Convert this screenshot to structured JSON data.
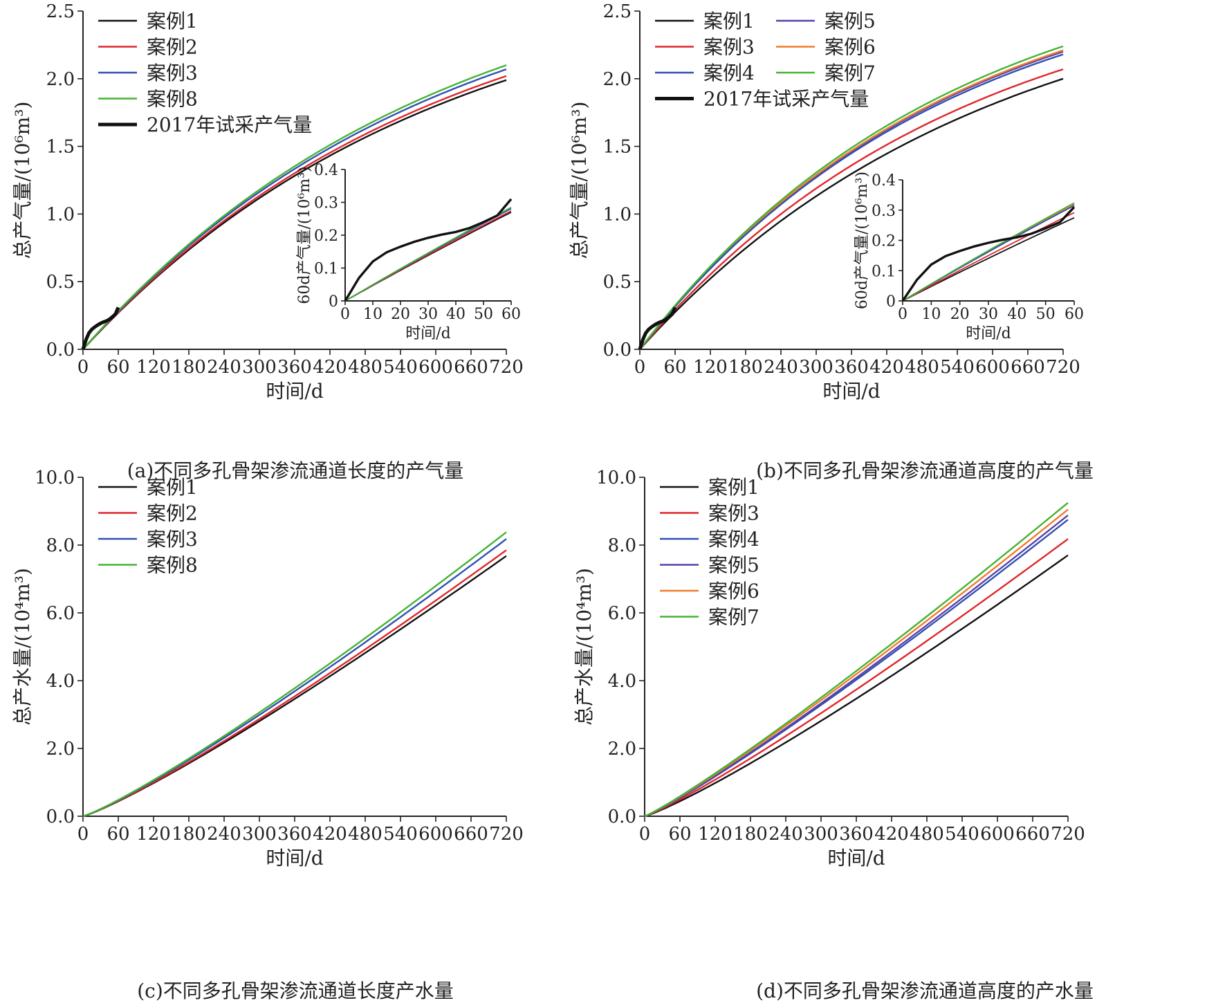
{
  "chart_data": [
    {
      "type": "line",
      "caption": "(a)不同多孔骨架渗流通道长度的产气量",
      "xlabel": "时间/d",
      "ylabel": "总产气量/(10⁶m³)",
      "xlim": [
        0,
        720
      ],
      "ylim": [
        0,
        2.5
      ],
      "xticks": [
        0,
        60,
        120,
        180,
        240,
        300,
        360,
        420,
        480,
        540,
        600,
        660,
        720
      ],
      "yticks": [
        "0.0",
        "0.5",
        "1.0",
        "1.5",
        "2.0",
        "2.5"
      ],
      "legend_position": "top-left",
      "legend_columns": 1,
      "series": [
        {
          "name": "案例1",
          "color": "#111111",
          "final": 1.99,
          "k": 0.00165
        },
        {
          "name": "案例2",
          "color": "#e0262a",
          "final": 2.02,
          "k": 0.00165
        },
        {
          "name": "案例3",
          "color": "#2f4fb3",
          "final": 2.07,
          "k": 0.00165
        },
        {
          "name": "案例8",
          "color": "#43b331",
          "final": 2.1,
          "k": 0.00165
        },
        {
          "name": "2017年试采产气量",
          "color": "#111111",
          "observed": true
        }
      ],
      "observed_points": [
        [
          0,
          0
        ],
        [
          5,
          0.07
        ],
        [
          10,
          0.12
        ],
        [
          15,
          0.148
        ],
        [
          20,
          0.165
        ],
        [
          25,
          0.18
        ],
        [
          30,
          0.192
        ],
        [
          35,
          0.202
        ],
        [
          40,
          0.21
        ],
        [
          45,
          0.222
        ],
        [
          50,
          0.24
        ],
        [
          55,
          0.26
        ],
        [
          60,
          0.31
        ]
      ],
      "inset": {
        "xlabel": "时间/d",
        "ylabel": "60d产气量/(10⁶m³)",
        "xlim": [
          0,
          60
        ],
        "ylim": [
          0,
          0.4
        ],
        "xticks": [
          0,
          10,
          20,
          30,
          40,
          50,
          60
        ],
        "yticks": [
          "0",
          "0.1",
          "0.2",
          "0.3",
          "0.4"
        ]
      }
    },
    {
      "type": "line",
      "caption": "(b)不同多孔骨架渗流通道高度的产气量",
      "xlabel": "时间/d",
      "ylabel": "总产气量/(10⁶m³)",
      "xlim": [
        0,
        720
      ],
      "ylim": [
        0,
        2.5
      ],
      "xticks": [
        0,
        60,
        120,
        180,
        240,
        300,
        360,
        420,
        480,
        540,
        600,
        660,
        720
      ],
      "yticks": [
        "0.0",
        "0.5",
        "1.0",
        "1.5",
        "2.0",
        "2.5"
      ],
      "legend_position": "top-left",
      "legend_columns": 2,
      "series": [
        {
          "name": "案例1",
          "color": "#111111",
          "final": 2.0,
          "k": 0.0017
        },
        {
          "name": "案例5",
          "color": "#5b3fa8",
          "final": 2.2,
          "k": 0.0019
        },
        {
          "name": "案例3",
          "color": "#e0262a",
          "final": 2.07,
          "k": 0.0018
        },
        {
          "name": "案例6",
          "color": "#ef7b2a",
          "final": 2.21,
          "k": 0.0019
        },
        {
          "name": "案例4",
          "color": "#2f4fb3",
          "final": 2.18,
          "k": 0.0019
        },
        {
          "name": "案例7",
          "color": "#43b331",
          "final": 2.24,
          "k": 0.0019
        },
        {
          "name": "2017年试采产气量",
          "color": "#111111",
          "observed": true
        }
      ],
      "observed_points": [
        [
          0,
          0
        ],
        [
          5,
          0.07
        ],
        [
          10,
          0.12
        ],
        [
          15,
          0.148
        ],
        [
          20,
          0.165
        ],
        [
          25,
          0.18
        ],
        [
          30,
          0.192
        ],
        [
          35,
          0.202
        ],
        [
          40,
          0.21
        ],
        [
          45,
          0.222
        ],
        [
          50,
          0.24
        ],
        [
          55,
          0.26
        ],
        [
          60,
          0.31
        ]
      ],
      "inset": {
        "xlabel": "时间/d",
        "ylabel": "60d产气量/(10⁶m³)",
        "xlim": [
          0,
          60
        ],
        "ylim": [
          0,
          0.4
        ],
        "xticks": [
          0,
          10,
          20,
          30,
          40,
          50,
          60
        ],
        "yticks": [
          "0",
          "0.1",
          "0.2",
          "0.3",
          "0.4"
        ]
      }
    },
    {
      "type": "line",
      "caption": "(c)不同多孔骨架渗流通道长度产水量",
      "xlabel": "时间/d",
      "ylabel": "总产水量/(10⁴m³)",
      "xlim": [
        0,
        720
      ],
      "ylim": [
        0,
        10
      ],
      "xticks": [
        0,
        60,
        120,
        180,
        240,
        300,
        360,
        420,
        480,
        540,
        600,
        660,
        720
      ],
      "yticks": [
        "0.0",
        "2.0",
        "4.0",
        "6.0",
        "8.0",
        "10.0"
      ],
      "legend_position": "top-left",
      "legend_columns": 1,
      "series": [
        {
          "name": "案例1",
          "color": "#111111",
          "final": 7.68,
          "p": 1.15
        },
        {
          "name": "案例2",
          "color": "#e0262a",
          "final": 7.85,
          "p": 1.15
        },
        {
          "name": "案例3",
          "color": "#2f4fb3",
          "final": 8.18,
          "p": 1.15
        },
        {
          "name": "案例8",
          "color": "#43b331",
          "final": 8.38,
          "p": 1.15
        }
      ]
    },
    {
      "type": "line",
      "caption": "(d)不同多孔骨架渗流通道高度的产水量",
      "xlabel": "时间/d",
      "ylabel": "总产水量/(10⁴m³)",
      "xlim": [
        0,
        720
      ],
      "ylim": [
        0,
        10
      ],
      "xticks": [
        0,
        60,
        120,
        180,
        240,
        300,
        360,
        420,
        480,
        540,
        600,
        660,
        720
      ],
      "yticks": [
        "0.0",
        "2.0",
        "4.0",
        "6.0",
        "8.0",
        "10.0"
      ],
      "legend_position": "top-left",
      "legend_columns": 1,
      "series": [
        {
          "name": "案例1",
          "color": "#111111",
          "final": 7.7,
          "p": 1.15
        },
        {
          "name": "案例3",
          "color": "#e0262a",
          "final": 8.18,
          "p": 1.13
        },
        {
          "name": "案例4",
          "color": "#2f4fb3",
          "final": 8.75,
          "p": 1.12
        },
        {
          "name": "案例5",
          "color": "#5b3fa8",
          "final": 8.88,
          "p": 1.12
        },
        {
          "name": "案例6",
          "color": "#ef7b2a",
          "final": 9.05,
          "p": 1.11
        },
        {
          "name": "案例7",
          "color": "#43b331",
          "final": 9.25,
          "p": 1.11
        }
      ]
    }
  ]
}
